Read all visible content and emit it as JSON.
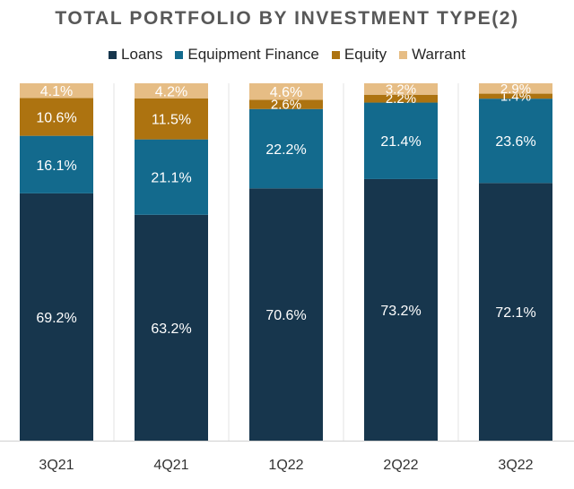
{
  "chart_data": {
    "type": "stacked-bar-100",
    "title": "TOTAL PORTFOLIO BY INVESTMENT TYPE(2)",
    "categories": [
      "3Q21",
      "4Q21",
      "1Q22",
      "2Q22",
      "3Q22"
    ],
    "series": [
      {
        "name": "Loans",
        "color": "#17364d",
        "label_color": "#ffffff",
        "values": [
          69.2,
          63.2,
          70.6,
          73.2,
          72.1
        ],
        "labels": [
          "69.2%",
          "63.2%",
          "70.6%",
          "73.2%",
          "72.1%"
        ]
      },
      {
        "name": "Equipment Finance",
        "color": "#136a8d",
        "label_color": "#ffffff",
        "values": [
          16.1,
          21.1,
          22.2,
          21.4,
          23.6
        ],
        "labels": [
          "16.1%",
          "21.1%",
          "22.2%",
          "21.4%",
          "23.6%"
        ]
      },
      {
        "name": "Equity",
        "color": "#ad7310",
        "label_color": "#ffffff",
        "values": [
          10.6,
          11.5,
          2.6,
          2.2,
          1.4
        ],
        "labels": [
          "10.6%",
          "11.5%",
          "2.6%",
          "2.2%",
          "1.4%"
        ]
      },
      {
        "name": "Warrant",
        "color": "#e6bd85",
        "label_color": "#ffffff",
        "values": [
          4.1,
          4.2,
          4.6,
          3.2,
          2.9
        ],
        "labels": [
          "4.1%",
          "4.2%",
          "4.6%",
          "3.2%",
          "2.9%"
        ]
      }
    ],
    "ylim": [
      0,
      100
    ],
    "legend_position": "top-center",
    "grid": false,
    "xlabel": "",
    "ylabel": ""
  }
}
